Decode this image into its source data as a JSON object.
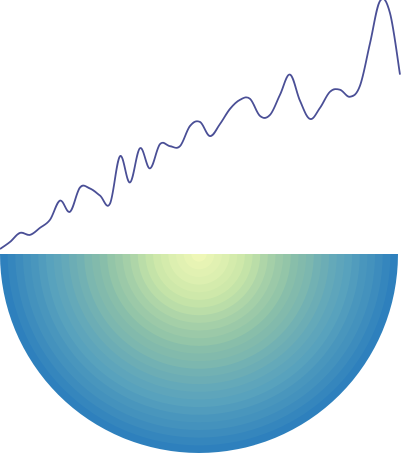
{
  "chart_data": [
    {
      "type": "line",
      "title": "",
      "xlabel": "",
      "ylabel": "",
      "grid": false,
      "legend": "none",
      "axes_visible": false,
      "x": [
        0,
        1,
        2,
        3,
        4,
        5,
        6,
        7,
        8,
        9,
        10,
        11,
        12,
        13,
        14,
        15,
        16,
        17,
        18,
        19,
        20,
        21,
        22,
        23,
        24,
        25,
        26,
        27,
        28,
        29,
        30,
        31,
        32,
        33,
        34,
        35,
        36,
        37,
        38,
        39,
        40
      ],
      "series": [
        {
          "color": "#4a4f96",
          "values": [
            2,
            9,
            18,
            16,
            23,
            31,
            50,
            39,
            63,
            62,
            55,
            47,
            94,
            68,
            102,
            82,
            106,
            104,
            104,
            124,
            128,
            114,
            126,
            141,
            150,
            151,
            134,
            135,
            155,
            175,
            149,
            131,
            142,
            158,
            160,
            153,
            164,
            206,
            248,
            236,
            175
          ]
        }
      ]
    },
    {
      "type": "radial-rings",
      "title": "",
      "legend": "none",
      "axes_visible": false,
      "colormap": "yellow-green-blue",
      "color_low": "#f1f8b8",
      "color_high": "#2c7fbd",
      "ring_values": [
        0.02,
        0.06,
        0.1,
        0.13,
        0.18,
        0.22,
        0.27,
        0.31,
        0.36,
        0.4,
        0.44,
        0.47,
        0.52,
        0.55,
        0.58,
        0.63,
        0.66,
        0.7,
        0.73,
        0.76,
        0.8,
        0.84,
        0.87,
        0.91,
        0.95,
        0.99
      ]
    }
  ]
}
